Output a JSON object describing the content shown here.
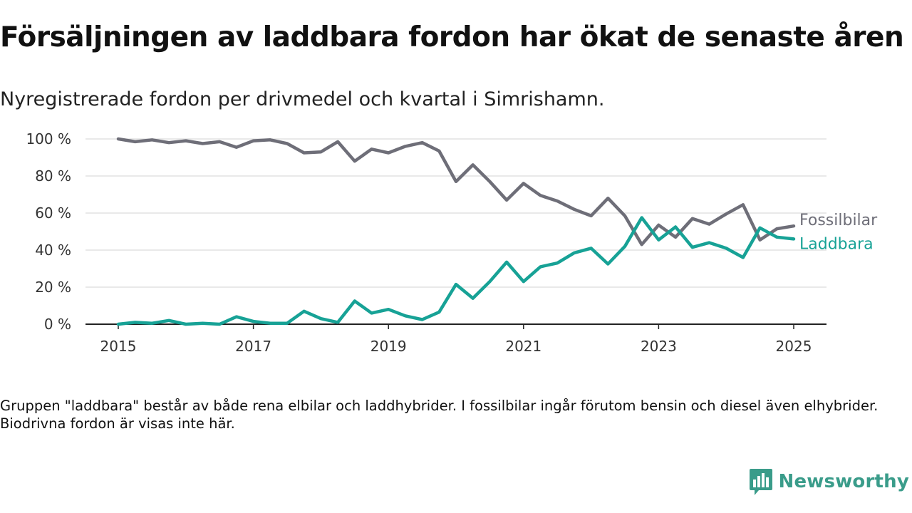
{
  "title": "Försäljningen av laddbara fordon har ökat de senaste åren",
  "subtitle": "Nyregistrerade fordon per drivmedel och kvartal i Simrishamn.",
  "footnote": "Gruppen \"laddbara\" består av både rena elbilar och laddhybrider. I fossilbilar ingår förutom bensin och diesel även elhybrider. Biodrivna fordon är visas inte här.",
  "brand": {
    "name": "Newsworthy",
    "color": "#3a9c8a",
    "icon": "newsworthy-chart-icon"
  },
  "chart_data": {
    "type": "line",
    "title": "Försäljningen av laddbara fordon har ökat de senaste åren",
    "subtitle": "Nyregistrerade fordon per drivmedel och kvartal i Simrishamn.",
    "xlabel": "",
    "ylabel": "",
    "x_ticks": [
      "2015",
      "2017",
      "2019",
      "2021",
      "2023",
      "2025"
    ],
    "y_ticks": [
      "0 %",
      "20 %",
      "40 %",
      "60 %",
      "80 %",
      "100 %"
    ],
    "xlim": [
      2015,
      2025
    ],
    "ylim": [
      0,
      100
    ],
    "grid": "horizontal",
    "legend": "direct labels at line ends (right)",
    "x": [
      "2015-Q1",
      "2015-Q2",
      "2015-Q3",
      "2015-Q4",
      "2016-Q1",
      "2016-Q2",
      "2016-Q3",
      "2016-Q4",
      "2017-Q1",
      "2017-Q2",
      "2017-Q3",
      "2017-Q4",
      "2018-Q1",
      "2018-Q2",
      "2018-Q3",
      "2018-Q4",
      "2019-Q1",
      "2019-Q2",
      "2019-Q3",
      "2019-Q4",
      "2020-Q1",
      "2020-Q2",
      "2020-Q3",
      "2020-Q4",
      "2021-Q1",
      "2021-Q2",
      "2021-Q3",
      "2021-Q4",
      "2022-Q1",
      "2022-Q2",
      "2022-Q3",
      "2022-Q4",
      "2023-Q1",
      "2023-Q2",
      "2023-Q3",
      "2023-Q4",
      "2024-Q1",
      "2024-Q2",
      "2024-Q3",
      "2024-Q4",
      "2025-Q1"
    ],
    "series": [
      {
        "name": "Fossilbilar",
        "color": "#6e6e78",
        "values": [
          100,
          98.5,
          99.5,
          98,
          99,
          97.5,
          98.5,
          95.5,
          99,
          99.5,
          97.5,
          92.5,
          93,
          98.5,
          88,
          94.5,
          92.5,
          96,
          98,
          93.5,
          77,
          86,
          77,
          67,
          76,
          69.5,
          66.5,
          62,
          58.5,
          68,
          58.5,
          43,
          53.5,
          47,
          57,
          54,
          59.5,
          64.5,
          45.5,
          51.5,
          53
        ]
      },
      {
        "name": "Laddbara",
        "color": "#17a296",
        "values": [
          0,
          1,
          0.5,
          2,
          0,
          0.5,
          0,
          4,
          1.5,
          0.5,
          0.5,
          7,
          3,
          1,
          12.5,
          6,
          8,
          4.5,
          2.5,
          6.5,
          21.5,
          14,
          23,
          33.5,
          23,
          31,
          33,
          38.5,
          41,
          32.5,
          42,
          57.5,
          45.5,
          52.5,
          41.5,
          44,
          41,
          36,
          52,
          47,
          46
        ]
      }
    ]
  }
}
